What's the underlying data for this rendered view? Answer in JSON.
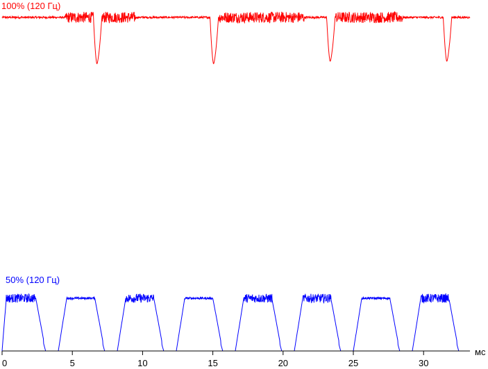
{
  "chart_data": {
    "type": "line",
    "title": "",
    "xlabel": "мс",
    "ylabel": "",
    "xlim": [
      0,
      33.3
    ],
    "x_ticks": [
      "0",
      "5",
      "10",
      "15",
      "20",
      "25",
      "30"
    ],
    "x_tick_values": [
      0,
      5,
      10,
      15,
      20,
      25,
      30
    ],
    "grid": false,
    "series": [
      {
        "name": "100% (120 Гц)",
        "color": "#ff0000",
        "ylim": [
          0,
          1
        ],
        "baseline_level": 0.93,
        "dips": [
          {
            "start": 6.5,
            "min": 6.75,
            "end": 7.1,
            "level": 0.0
          },
          {
            "start": 14.8,
            "min": 15.05,
            "end": 15.4,
            "level": 0.0
          },
          {
            "start": 23.1,
            "min": 23.35,
            "end": 23.7,
            "level": 0.05
          },
          {
            "start": 31.4,
            "min": 31.65,
            "end": 32.0,
            "level": 0.05
          }
        ],
        "noisy_segments": [
          [
            4.5,
            6.5
          ],
          [
            7.1,
            9.5
          ],
          [
            15.4,
            18.5
          ],
          [
            18.5,
            21.5
          ],
          [
            23.7,
            26.5
          ],
          [
            26.5,
            28.5
          ]
        ]
      },
      {
        "name": "50% (120 Гц)",
        "color": "#0000ff",
        "ylim": [
          0,
          1
        ],
        "high_level": 0.95,
        "low_level": 0.0,
        "pulses": [
          {
            "rise": [
              0.0,
              0.3
            ],
            "fall": [
              2.4,
              3.1
            ]
          },
          {
            "rise": [
              4.0,
              4.6
            ],
            "fall": [
              6.6,
              7.3
            ]
          },
          {
            "rise": [
              8.2,
              8.8
            ],
            "fall": [
              10.8,
              11.5
            ]
          },
          {
            "rise": [
              12.4,
              13.0
            ],
            "fall": [
              15.0,
              15.7
            ]
          },
          {
            "rise": [
              16.6,
              17.2
            ],
            "fall": [
              19.2,
              19.9
            ]
          },
          {
            "rise": [
              20.8,
              21.4
            ],
            "fall": [
              23.4,
              24.1
            ]
          },
          {
            "rise": [
              25.0,
              25.6
            ],
            "fall": [
              27.6,
              28.3
            ]
          },
          {
            "rise": [
              29.2,
              29.8
            ],
            "fall": [
              31.8,
              32.5
            ]
          }
        ],
        "noisy_pulses": [
          0,
          2,
          4,
          5,
          7
        ]
      }
    ]
  }
}
